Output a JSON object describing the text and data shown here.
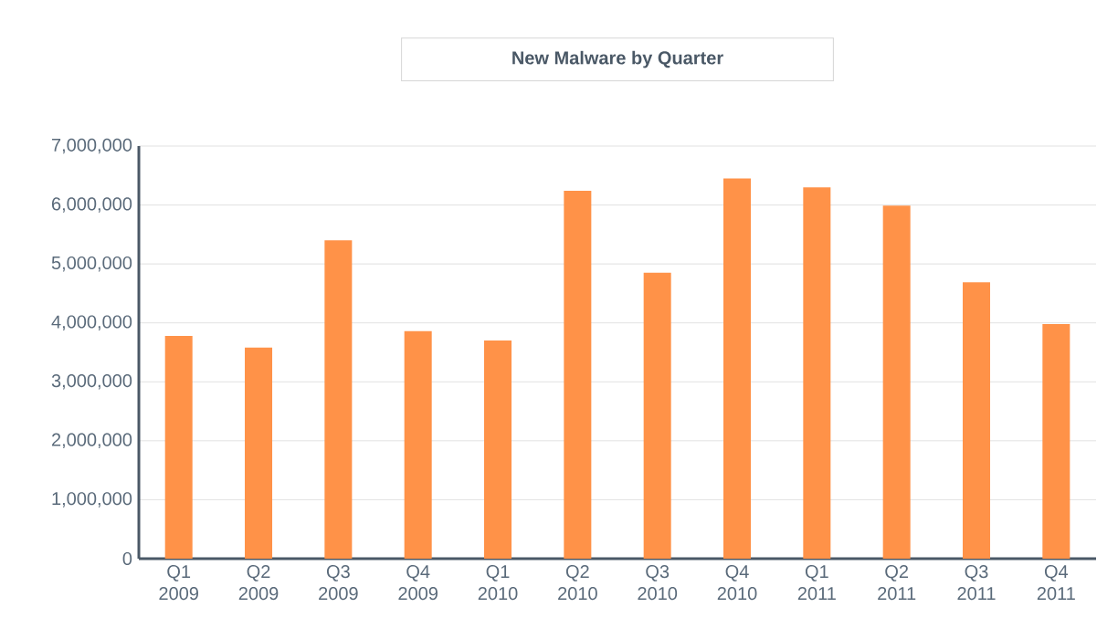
{
  "chart_data": {
    "type": "bar",
    "title": "New Malware by Quarter",
    "categories": [
      "Q1 2009",
      "Q2 2009",
      "Q3 2009",
      "Q4 2009",
      "Q1 2010",
      "Q2 2010",
      "Q3 2010",
      "Q4 2010",
      "Q1 2011",
      "Q2 2011",
      "Q3 2011",
      "Q4 2011"
    ],
    "values": [
      3780000,
      3580000,
      5400000,
      3860000,
      3700000,
      6240000,
      4850000,
      6450000,
      6300000,
      5990000,
      4690000,
      3980000
    ],
    "color": "#ff9248",
    "ylim": [
      0,
      7000000
    ],
    "yticks": [
      {
        "value": 0,
        "label": "0"
      },
      {
        "value": 1000000,
        "label": "1,000,000"
      },
      {
        "value": 2000000,
        "label": "2,000,000"
      },
      {
        "value": 3000000,
        "label": "3,000,000"
      },
      {
        "value": 4000000,
        "label": "4,000,000"
      },
      {
        "value": 5000000,
        "label": "5,000,000"
      },
      {
        "value": 6000000,
        "label": "6,000,000"
      },
      {
        "value": 7000000,
        "label": "7,000,000"
      }
    ],
    "grid": "y"
  }
}
